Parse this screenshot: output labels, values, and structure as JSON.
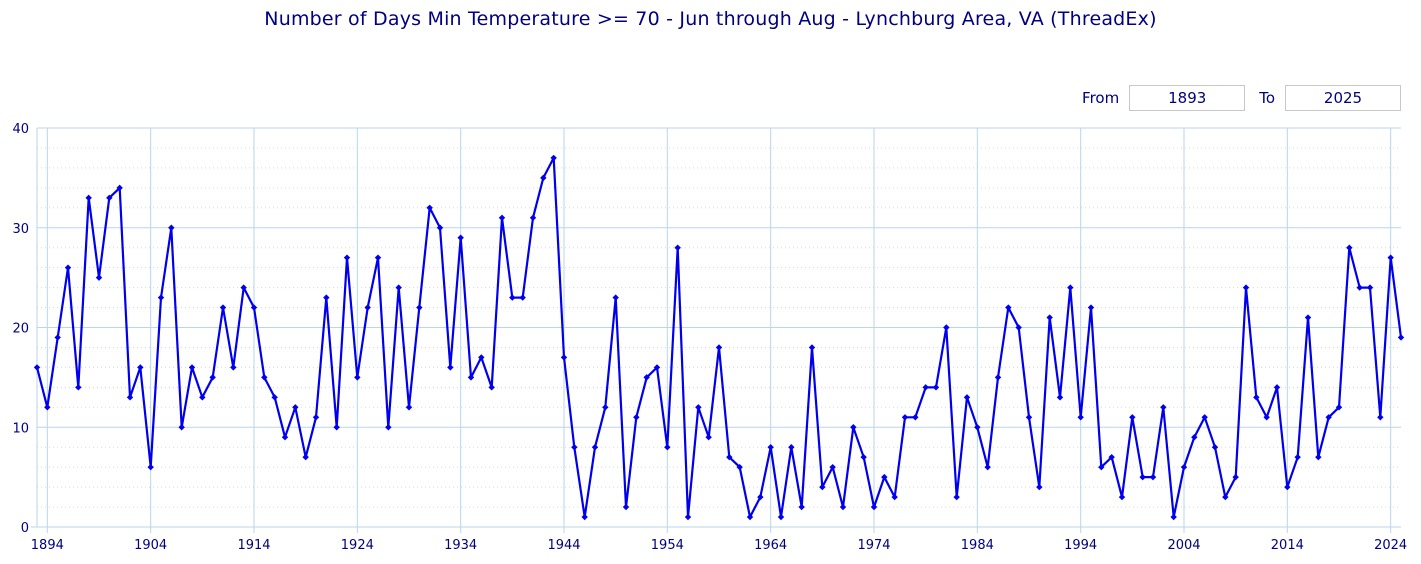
{
  "title": "Number of Days Min Temperature >= 70 - Jun through Aug - Lynchburg Area, VA (ThreadEx)",
  "controls": {
    "from_label": "From",
    "from_value": "1893",
    "to_label": "To",
    "to_value": "2025"
  },
  "colors": {
    "series": "#0000ee",
    "grid": "#b9d6ec",
    "text": "#000080"
  },
  "chart_data": {
    "type": "line",
    "title": "Number of Days Min Temperature >= 70 - Jun through Aug - Lynchburg Area, VA (ThreadEx)",
    "xlabel": "",
    "ylabel": "",
    "xlim": [
      1893,
      2025
    ],
    "ylim": [
      0,
      40
    ],
    "x_ticks": [
      1894,
      1904,
      1914,
      1924,
      1934,
      1944,
      1954,
      1964,
      1974,
      1984,
      1994,
      2004,
      2014,
      2024
    ],
    "y_ticks": [
      0,
      10,
      20,
      30,
      40
    ],
    "grid": true,
    "legend": "none",
    "x_start": 1893,
    "values": [
      16,
      12,
      19,
      26,
      14,
      33,
      25,
      33,
      34,
      13,
      16,
      6,
      23,
      30,
      10,
      16,
      13,
      15,
      22,
      16,
      24,
      22,
      15,
      13,
      9,
      12,
      7,
      11,
      23,
      10,
      27,
      15,
      22,
      27,
      10,
      24,
      12,
      22,
      32,
      30,
      16,
      29,
      15,
      17,
      14,
      31,
      23,
      23,
      31,
      35,
      37,
      17,
      8,
      1,
      8,
      12,
      23,
      2,
      11,
      15,
      16,
      8,
      28,
      1,
      12,
      9,
      18,
      7,
      6,
      1,
      3,
      8,
      1,
      8,
      2,
      18,
      4,
      6,
      2,
      10,
      7,
      2,
      5,
      3,
      11,
      11,
      14,
      14,
      20,
      3,
      13,
      10,
      6,
      15,
      22,
      20,
      11,
      4,
      21,
      13,
      24,
      11,
      22,
      6,
      7,
      3,
      11,
      5,
      5,
      12,
      1,
      6,
      9,
      11,
      8,
      3,
      5,
      24,
      13,
      11,
      14,
      4,
      7,
      21,
      7,
      11,
      12,
      28,
      24,
      24,
      11,
      27,
      19
    ]
  }
}
